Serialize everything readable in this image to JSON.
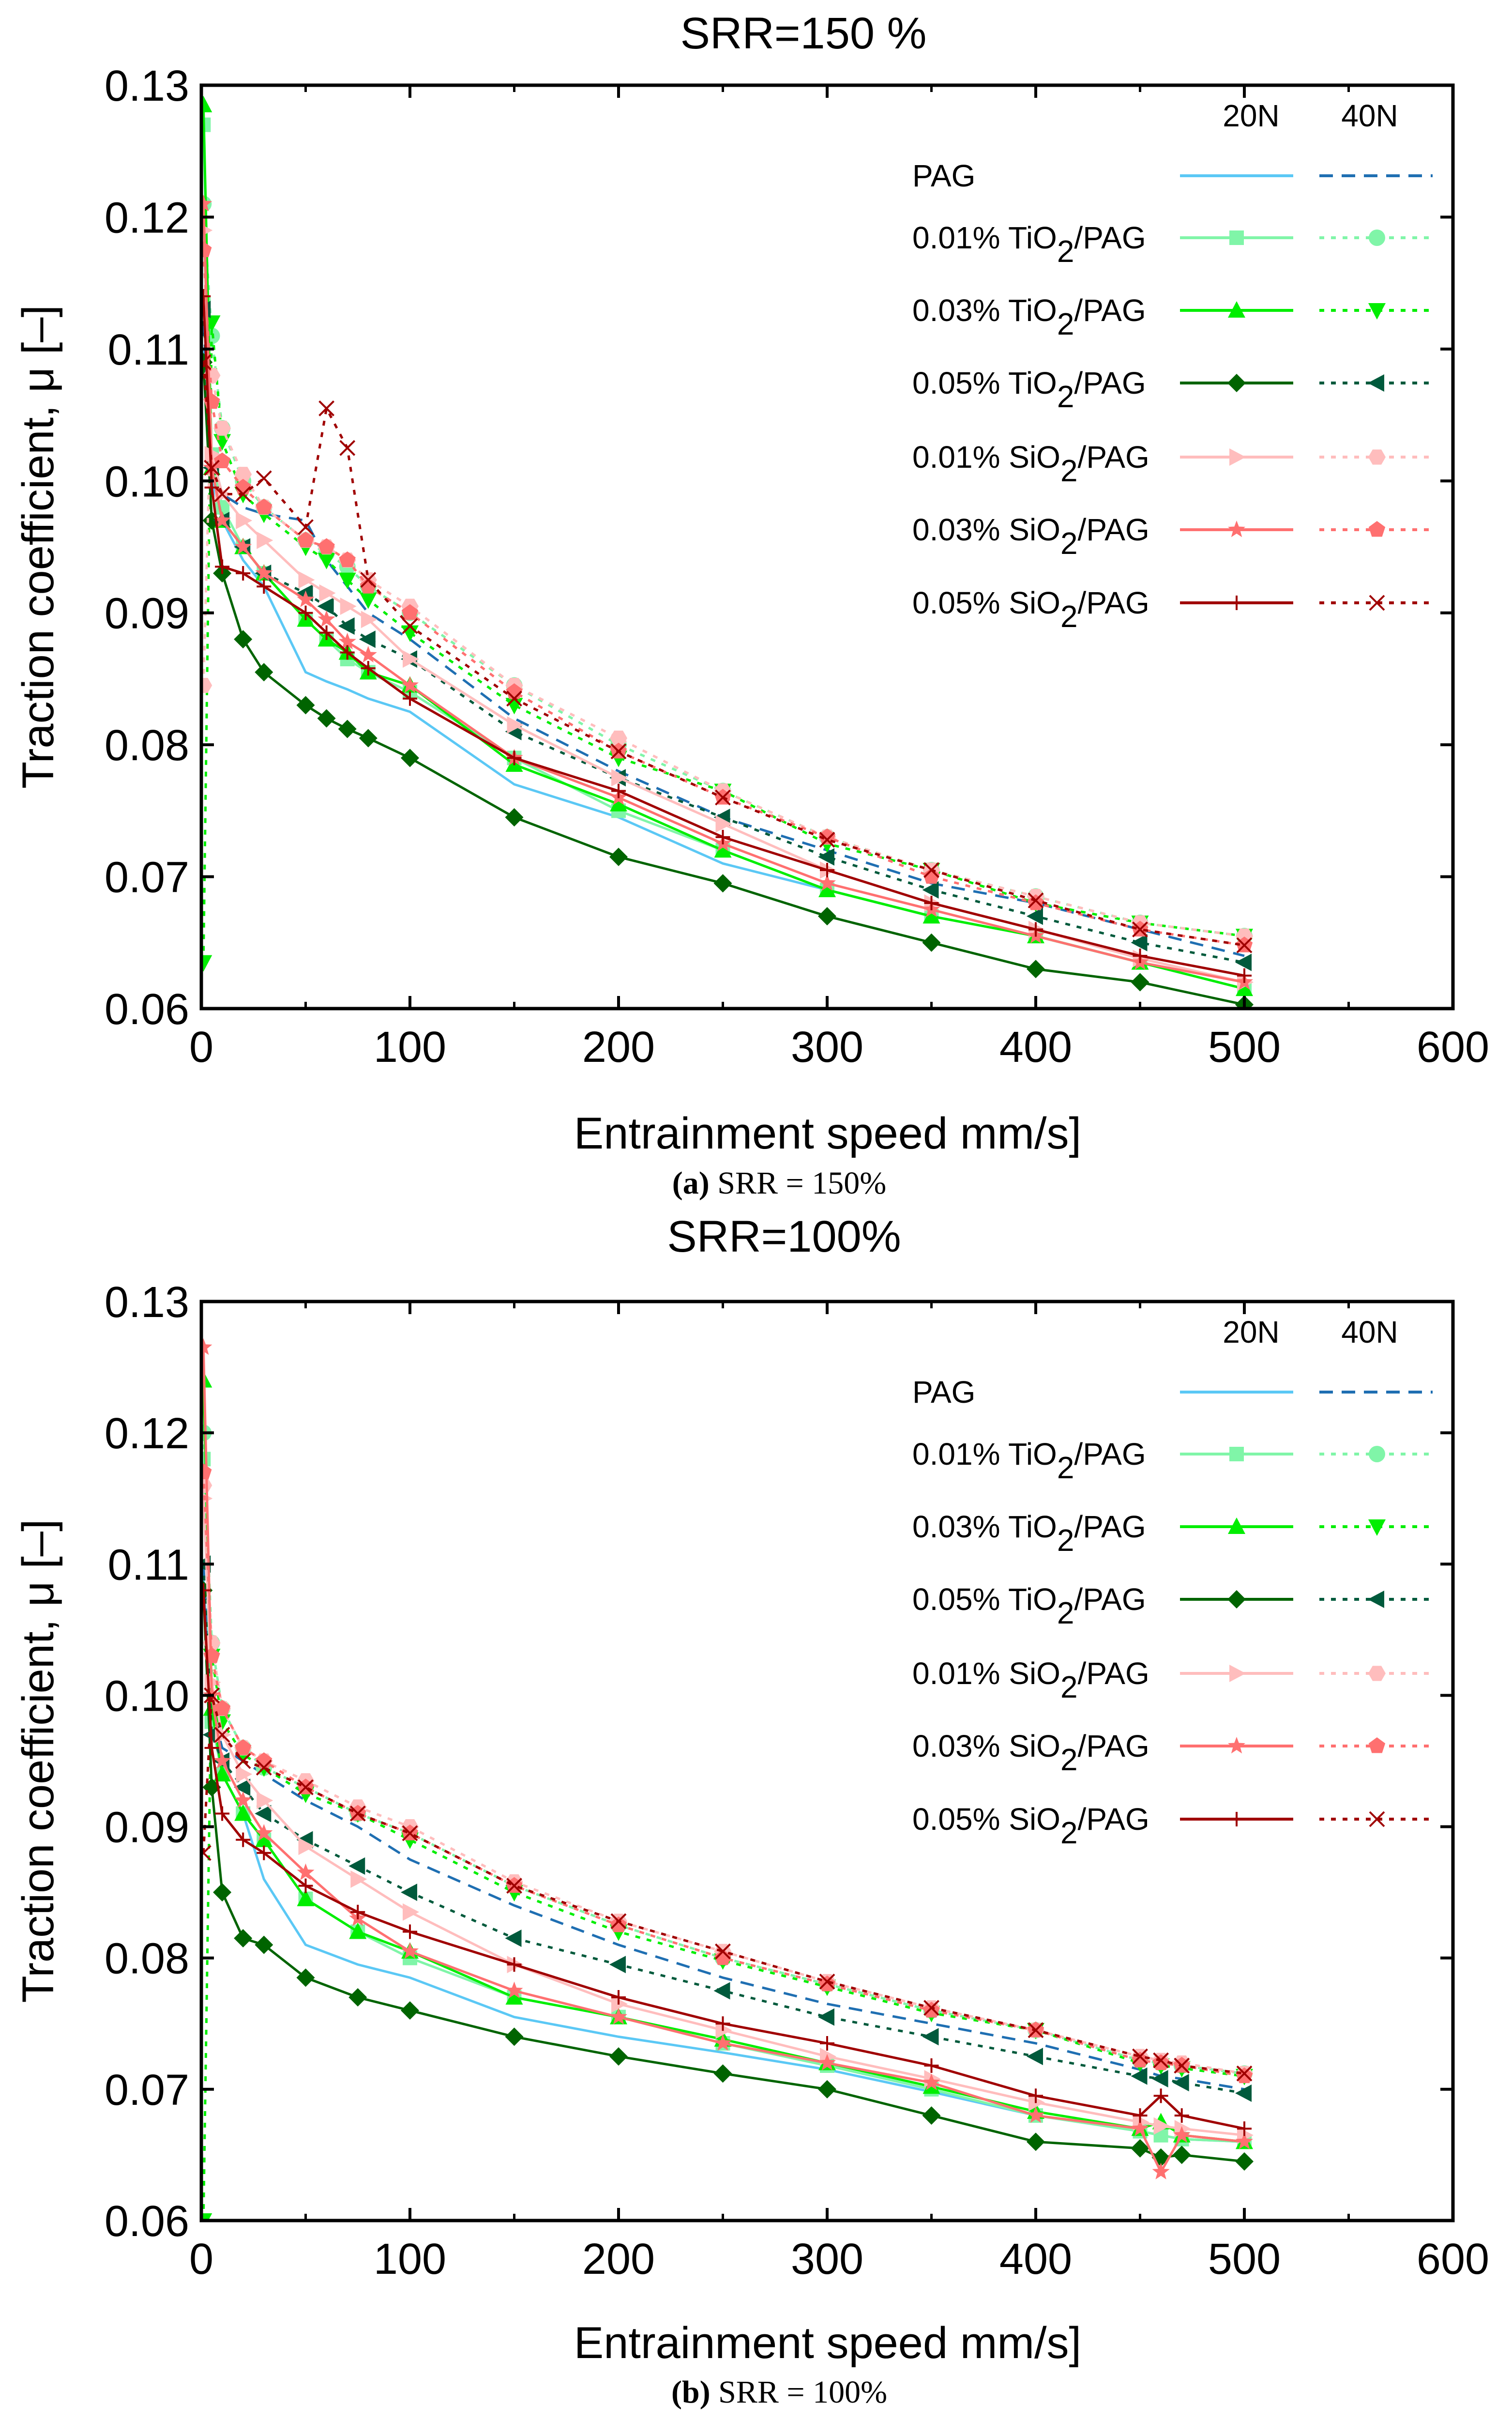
{
  "legend_headers": [
    "20N",
    "40N"
  ],
  "series_styles": [
    {
      "name": "PAG",
      "c20": "#5BC8F5",
      "c40": "#1F6FB2",
      "m20": "none",
      "m40": "none",
      "dash40": "dash"
    },
    {
      "name": "0.01% TiO2/PAG",
      "c20": "#80F5A8",
      "c40": "#80F5A8",
      "m20": "square",
      "m40": "circle",
      "dash40": "dot"
    },
    {
      "name": "0.03% TiO2/PAG",
      "c20": "#00EE00",
      "c40": "#00EE00",
      "m20": "triangle-up",
      "m40": "triangle-down",
      "dash40": "dot"
    },
    {
      "name": "0.05% TiO2/PAG",
      "c20": "#006400",
      "c40": "#005A3C",
      "m20": "diamond",
      "m40": "triangle-left",
      "dash40": "dot"
    },
    {
      "name": "0.01% SiO2/PAG",
      "c20": "#FFBDBD",
      "c40": "#FFBDBD",
      "m20": "triangle-right",
      "m40": "hexagon",
      "dash40": "dot"
    },
    {
      "name": "0.03% SiO2/PAG",
      "c20": "#FF7070",
      "c40": "#FF7070",
      "m20": "star",
      "m40": "pentagon",
      "dash40": "dot"
    },
    {
      "name": "0.05% SiO2/PAG",
      "c20": "#A00000",
      "c40": "#A00000",
      "m20": "plus",
      "m40": "cross",
      "dash40": "dot"
    }
  ],
  "chart_data": [
    {
      "type": "line",
      "title": "SRR=150 %",
      "caption_label": "(a)",
      "caption_text": " SRR = 150%",
      "xlabel": "Entrainment speed mm/s]",
      "ylabel": "Traction coefficient, μ [–]",
      "xlim": [
        0,
        600
      ],
      "ylim": [
        0.06,
        0.13
      ],
      "xticks": [
        0,
        100,
        200,
        300,
        400,
        500,
        600
      ],
      "yticks": [
        "0.06",
        "0.07",
        "0.08",
        "0.09",
        "0.10",
        "0.11",
        "0.12",
        "0.13"
      ],
      "legend": "top-right",
      "x": [
        1,
        5,
        10,
        20,
        30,
        50,
        60,
        70,
        80,
        100,
        150,
        200,
        250,
        300,
        350,
        400,
        450,
        500
      ],
      "series": [
        {
          "name": "PAG 20N",
          "values": [
            0.11,
            0.1,
            0.097,
            0.094,
            0.092,
            0.0855,
            0.0848,
            0.0842,
            0.0835,
            0.0825,
            0.077,
            0.0745,
            0.071,
            0.069,
            0.067,
            0.0655,
            0.0635,
            0.0615
          ]
        },
        {
          "name": "PAG 40N",
          "values": [
            0.112,
            0.102,
            0.099,
            0.098,
            0.0975,
            0.097,
            0.094,
            0.092,
            0.09,
            0.088,
            0.082,
            0.078,
            0.0745,
            0.072,
            0.0695,
            0.068,
            0.066,
            0.064
          ]
        },
        {
          "name": "0.01% TiO2/PAG 20N",
          "values": [
            0.127,
            0.102,
            0.098,
            0.095,
            0.093,
            0.0895,
            0.088,
            0.0865,
            0.0855,
            0.084,
            0.079,
            0.075,
            0.072,
            0.069,
            0.067,
            0.0655,
            0.0635,
            0.0615
          ]
        },
        {
          "name": "0.01% TiO2/PAG 40N",
          "values": [
            0.121,
            0.111,
            0.104,
            0.1,
            0.098,
            0.0955,
            0.0945,
            0.0935,
            0.092,
            0.09,
            0.0845,
            0.08,
            0.0765,
            0.073,
            0.0705,
            0.0685,
            0.0665,
            0.0655
          ]
        },
        {
          "name": "0.03% TiO2/PAG 20N",
          "values": [
            0.1285,
            0.101,
            0.097,
            0.095,
            0.093,
            0.0895,
            0.088,
            0.087,
            0.0855,
            0.0845,
            0.0785,
            0.0755,
            0.072,
            0.069,
            0.067,
            0.0655,
            0.0635,
            0.0615
          ]
        },
        {
          "name": "0.03% TiO2/PAG 40N",
          "values": [
            0.0635,
            0.112,
            0.103,
            0.099,
            0.0975,
            0.095,
            0.094,
            0.0925,
            0.091,
            0.0885,
            0.083,
            0.079,
            0.0765,
            0.0725,
            0.0705,
            0.068,
            0.0665,
            0.0655
          ]
        },
        {
          "name": "0.05% TiO2/PAG 20N",
          "values": [
            0.109,
            0.097,
            0.093,
            0.088,
            0.0855,
            0.083,
            0.082,
            0.0812,
            0.0805,
            0.079,
            0.0745,
            0.0715,
            0.0695,
            0.067,
            0.065,
            0.063,
            0.062,
            0.0603
          ]
        },
        {
          "name": "0.05% TiO2/PAG 40N",
          "values": [
            0.113,
            0.101,
            0.097,
            0.095,
            0.093,
            0.0915,
            0.0905,
            0.089,
            0.088,
            0.0865,
            0.081,
            0.0775,
            0.0745,
            0.0715,
            0.069,
            0.067,
            0.065,
            0.0635
          ]
        },
        {
          "name": "0.01% SiO2/PAG 20N",
          "values": [
            0.119,
            0.102,
            0.099,
            0.097,
            0.0955,
            0.0925,
            0.0915,
            0.0905,
            0.0895,
            0.0865,
            0.0815,
            0.0775,
            0.074,
            0.0705,
            0.068,
            0.066,
            0.0638,
            0.062
          ]
        },
        {
          "name": "0.01% SiO2/PAG 40N",
          "values": [
            0.0845,
            0.108,
            0.104,
            0.1005,
            0.098,
            0.0955,
            0.095,
            0.094,
            0.0925,
            0.0905,
            0.0845,
            0.0805,
            0.0765,
            0.073,
            0.0705,
            0.0685,
            0.0665,
            0.0655
          ]
        },
        {
          "name": "0.03% SiO2/PAG 20N",
          "values": [
            0.121,
            0.101,
            0.097,
            0.095,
            0.093,
            0.091,
            0.0895,
            0.0878,
            0.0868,
            0.0845,
            0.079,
            0.076,
            0.0725,
            0.0695,
            0.0675,
            0.0655,
            0.0635,
            0.062
          ]
        },
        {
          "name": "0.03% SiO2/PAG 40N",
          "values": [
            0.1175,
            0.106,
            0.1015,
            0.0995,
            0.098,
            0.0955,
            0.095,
            0.094,
            0.092,
            0.09,
            0.084,
            0.0795,
            0.076,
            0.073,
            0.07,
            0.068,
            0.066,
            0.0648
          ]
        },
        {
          "name": "0.05% SiO2/PAG 20N",
          "values": [
            0.114,
            0.0995,
            0.0935,
            0.093,
            0.092,
            0.09,
            0.0885,
            0.087,
            0.0858,
            0.0835,
            0.079,
            0.0765,
            0.073,
            0.0705,
            0.068,
            0.066,
            0.064,
            0.0625
          ]
        },
        {
          "name": "0.05% SiO2/PAG 40N",
          "values": [
            0.109,
            0.101,
            0.099,
            0.099,
            0.1002,
            0.0965,
            0.1055,
            0.1025,
            0.0925,
            0.089,
            0.0835,
            0.0795,
            0.076,
            0.0728,
            0.0705,
            0.0682,
            0.066,
            0.0648
          ]
        }
      ]
    },
    {
      "type": "line",
      "title": "SRR=100%",
      "caption_label": "(b)",
      "caption_text": " SRR = 100%",
      "xlabel": "Entrainment speed mm/s]",
      "ylabel": "Traction coefficient, μ [–]",
      "xlim": [
        0,
        600
      ],
      "ylim": [
        0.06,
        0.13
      ],
      "xticks": [
        0,
        100,
        200,
        300,
        400,
        500,
        600
      ],
      "yticks": [
        "0.06",
        "0.07",
        "0.08",
        "0.09",
        "0.10",
        "0.11",
        "0.12",
        "0.13"
      ],
      "legend": "top-right",
      "x": [
        1,
        5,
        10,
        20,
        30,
        50,
        75,
        100,
        150,
        200,
        250,
        300,
        350,
        400,
        450,
        460,
        470,
        500
      ],
      "series": [
        {
          "name": "PAG 20N",
          "values": [
            0.109,
            0.098,
            0.094,
            0.091,
            0.086,
            0.081,
            0.0795,
            0.0785,
            0.0755,
            0.074,
            0.0728,
            0.0715,
            0.0698,
            0.068,
            0.0668,
            0.0665,
            0.0662,
            0.066
          ]
        },
        {
          "name": "PAG 40N",
          "values": [
            0.11,
            0.099,
            0.096,
            0.095,
            0.094,
            0.092,
            0.09,
            0.0875,
            0.084,
            0.081,
            0.0785,
            0.0765,
            0.075,
            0.0735,
            0.0715,
            0.071,
            0.0708,
            0.07
          ]
        },
        {
          "name": "0.01% TiO2/PAG 20N",
          "values": [
            0.118,
            0.098,
            0.094,
            0.091,
            0.089,
            0.0845,
            0.082,
            0.08,
            0.077,
            0.0755,
            0.0735,
            0.0718,
            0.07,
            0.068,
            0.0668,
            0.0665,
            0.0662,
            0.066
          ]
        },
        {
          "name": "0.01% TiO2/PAG 40N",
          "values": [
            0.12,
            0.104,
            0.099,
            0.096,
            0.0945,
            0.093,
            0.091,
            0.0895,
            0.0855,
            0.0825,
            0.08,
            0.078,
            0.076,
            0.0745,
            0.0722,
            0.072,
            0.0718,
            0.0712
          ]
        },
        {
          "name": "0.03% TiO2/PAG 20N",
          "values": [
            0.124,
            0.099,
            0.094,
            0.091,
            0.089,
            0.0845,
            0.082,
            0.0805,
            0.077,
            0.0755,
            0.0738,
            0.072,
            0.0702,
            0.0683,
            0.067,
            0.0675,
            0.0665,
            0.066
          ]
        },
        {
          "name": "0.03% TiO2/PAG 40N",
          "values": [
            0.06,
            0.103,
            0.098,
            0.0955,
            0.0945,
            0.0925,
            0.091,
            0.089,
            0.085,
            0.082,
            0.0798,
            0.0778,
            0.0758,
            0.0745,
            0.072,
            0.0718,
            0.0716,
            0.071
          ]
        },
        {
          "name": "0.05% TiO2/PAG 20N",
          "values": [
            0.108,
            0.093,
            0.085,
            0.0815,
            0.081,
            0.0785,
            0.077,
            0.076,
            0.074,
            0.0725,
            0.0712,
            0.07,
            0.068,
            0.066,
            0.0655,
            0.0648,
            0.065,
            0.0645
          ]
        },
        {
          "name": "0.05% TiO2/PAG 40N",
          "values": [
            0.11,
            0.097,
            0.095,
            0.093,
            0.091,
            0.089,
            0.087,
            0.085,
            0.0815,
            0.0795,
            0.0775,
            0.0755,
            0.074,
            0.0725,
            0.071,
            0.0708,
            0.0705,
            0.0697
          ]
        },
        {
          "name": "0.01% SiO2/PAG 20N",
          "values": [
            0.115,
            0.101,
            0.097,
            0.094,
            0.092,
            0.0885,
            0.086,
            0.0835,
            0.0795,
            0.0765,
            0.0745,
            0.0725,
            0.0708,
            0.069,
            0.0675,
            0.0672,
            0.067,
            0.0665
          ]
        },
        {
          "name": "0.01% SiO2/PAG 40N",
          "values": [
            0.116,
            0.104,
            0.099,
            0.096,
            0.095,
            0.0935,
            0.0915,
            0.09,
            0.0858,
            0.0828,
            0.0805,
            0.0782,
            0.0762,
            0.0745,
            0.0725,
            0.0722,
            0.072,
            0.0712
          ]
        },
        {
          "name": "0.03% SiO2/PAG 20N",
          "values": [
            0.1265,
            0.1,
            0.095,
            0.092,
            0.0895,
            0.0865,
            0.083,
            0.0805,
            0.0775,
            0.0755,
            0.0735,
            0.072,
            0.0705,
            0.068,
            0.067,
            0.0637,
            0.0665,
            0.066
          ]
        },
        {
          "name": "0.03% SiO2/PAG 40N",
          "values": [
            0.117,
            0.103,
            0.099,
            0.096,
            0.095,
            0.093,
            0.091,
            0.0895,
            0.0855,
            0.0825,
            0.08,
            0.078,
            0.076,
            0.0745,
            0.0722,
            0.072,
            0.0718,
            0.071
          ]
        },
        {
          "name": "0.05% SiO2/PAG 20N",
          "values": [
            0.108,
            0.096,
            0.091,
            0.089,
            0.088,
            0.0855,
            0.0835,
            0.082,
            0.0795,
            0.077,
            0.075,
            0.0735,
            0.0718,
            0.0695,
            0.068,
            0.0695,
            0.068,
            0.067
          ]
        },
        {
          "name": "0.05% SiO2/PAG 40N",
          "values": [
            0.088,
            0.1,
            0.097,
            0.095,
            0.0945,
            0.093,
            0.091,
            0.0895,
            0.0855,
            0.0828,
            0.0805,
            0.0782,
            0.0762,
            0.0745,
            0.0725,
            0.0722,
            0.0718,
            0.0712
          ]
        }
      ]
    }
  ]
}
